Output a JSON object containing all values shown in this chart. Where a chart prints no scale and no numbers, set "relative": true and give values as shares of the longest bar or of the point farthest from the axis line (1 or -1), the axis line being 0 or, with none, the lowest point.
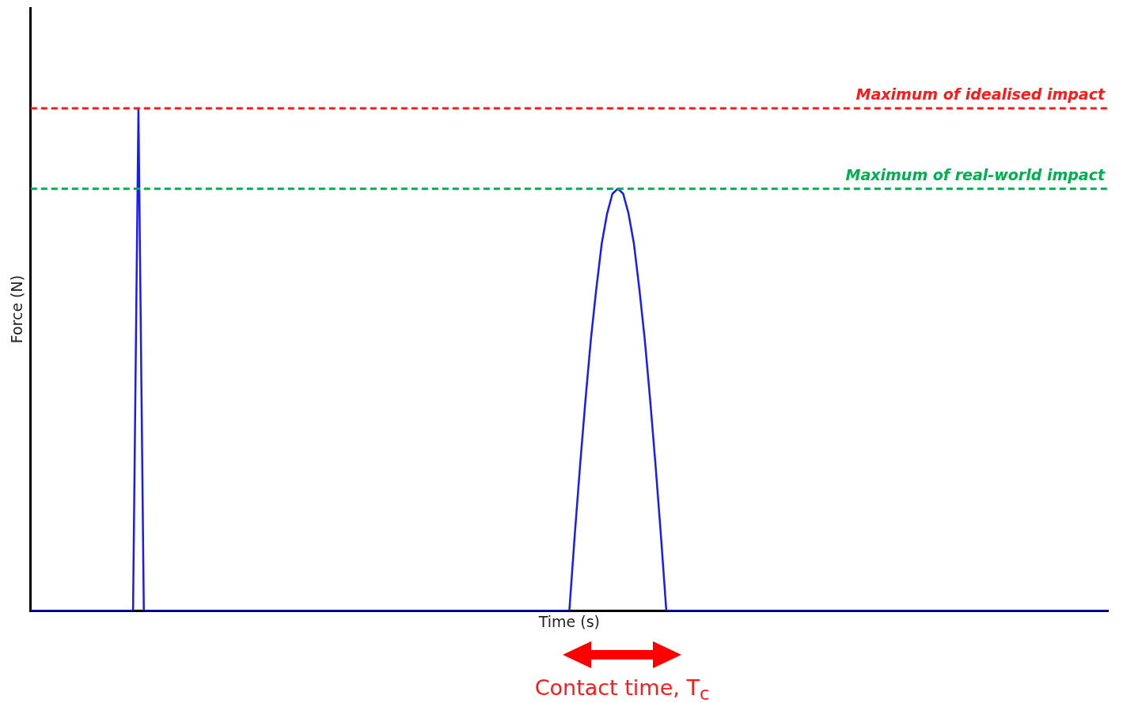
{
  "chart_data": {
    "type": "line",
    "relative": true,
    "xlabel": "Time (s)",
    "ylabel": "Force (N)",
    "categories": [
      null,
      null,
      null,
      null,
      null,
      null,
      null,
      null,
      null,
      null,
      null,
      null,
      null,
      null,
      null,
      null,
      null,
      null,
      null,
      null,
      null,
      null,
      null,
      null,
      null,
      null,
      null,
      null,
      null,
      null,
      null,
      null,
      null,
      null,
      null,
      null,
      null,
      null,
      null,
      null,
      null,
      null,
      null,
      null,
      null,
      null,
      null,
      null,
      null,
      null,
      null,
      null,
      null,
      null,
      null,
      null,
      null,
      null,
      null,
      null,
      null,
      null,
      null,
      null,
      null,
      null,
      null,
      null,
      null,
      null,
      null,
      null,
      null,
      null,
      null,
      null,
      null,
      null,
      null,
      null,
      null,
      null,
      null,
      null,
      null,
      null,
      null,
      null,
      null,
      null,
      null,
      null,
      null,
      null,
      null,
      null,
      null,
      null,
      null,
      null,
      null,
      null,
      null,
      null,
      null,
      null,
      null,
      null,
      null,
      null,
      null,
      null,
      null,
      null,
      null,
      null,
      null,
      null,
      null,
      null,
      null,
      null,
      null,
      null,
      null,
      null,
      null,
      null,
      null,
      null,
      null,
      null,
      null,
      null,
      null,
      null,
      null,
      null,
      null,
      null,
      null,
      null,
      null,
      null,
      null,
      null,
      null,
      null,
      null,
      null,
      null,
      null,
      null,
      null,
      null,
      null,
      null,
      null,
      null,
      null,
      null,
      null,
      null,
      null,
      null,
      null,
      null,
      null,
      null,
      null,
      null,
      null,
      null,
      null,
      null,
      null,
      null,
      null,
      null,
      null,
      null,
      null,
      null,
      null,
      null,
      null,
      null,
      null,
      null,
      null,
      null,
      null,
      null,
      null,
      null,
      null,
      null,
      null,
      null,
      null,
      null
    ],
    "series": [
      {
        "color": "#1a1aff",
        "values": [
          0,
          0,
          0,
          0,
          0,
          0,
          0,
          0,
          0,
          0,
          0,
          0,
          0,
          0,
          0,
          0,
          0,
          0,
          0,
          0,
          1,
          0,
          0,
          0,
          0,
          0,
          0,
          0,
          0,
          0,
          0,
          0,
          0,
          0,
          0,
          0,
          0,
          0,
          0,
          0,
          0,
          0,
          0,
          0,
          0,
          0,
          0,
          0,
          0,
          0,
          0,
          0,
          0,
          0,
          0,
          0,
          0,
          0,
          0,
          0,
          0,
          0,
          0,
          0,
          0,
          0,
          0,
          0,
          0,
          0,
          0,
          0,
          0,
          0,
          0,
          0,
          0,
          0,
          0,
          0,
          0,
          0,
          0,
          0,
          0,
          0,
          0,
          0,
          0,
          0,
          0,
          0,
          0,
          0,
          0,
          0,
          0,
          0,
          0,
          0,
          0,
          0.15,
          0.29,
          0.42,
          0.54,
          0.64,
          0.73,
          0.79,
          0.83,
          0.84,
          0.83,
          0.79,
          0.73,
          0.64,
          0.54,
          0.42,
          0.29,
          0.15,
          0,
          0,
          0,
          0,
          0,
          0,
          0,
          0,
          0,
          0,
          0,
          0,
          0,
          0,
          0,
          0,
          0,
          0,
          0,
          0,
          0,
          0,
          0,
          0,
          0,
          0,
          0,
          0,
          0,
          0,
          0,
          0,
          0,
          0,
          0,
          0,
          0,
          0,
          0,
          0,
          0,
          0,
          0,
          0,
          0,
          0,
          0,
          0,
          0,
          0,
          0,
          0,
          0,
          0,
          0,
          0,
          0,
          0,
          0,
          0,
          0,
          0,
          0,
          0,
          0,
          0,
          0,
          0,
          0,
          0,
          0,
          0,
          0,
          0,
          0,
          0,
          0,
          0,
          0,
          0,
          0,
          0,
          0
        ]
      }
    ],
    "ref_lines": [
      {
        "axis": "y",
        "value": 1,
        "label": "Maximum of idealised impact",
        "color": "#ff1a1a",
        "line_style": "dashed"
      },
      {
        "axis": "y",
        "value": 0.84,
        "label": "Maximum of real-world impact",
        "color": "#00b050",
        "line_style": "dashed"
      }
    ],
    "annotations": [
      "Contact time, T$_{c}$"
    ],
    "grid": false,
    "legend": false,
    "tick_labels": false,
    "marker": "none",
    "line_style": "solid"
  }
}
